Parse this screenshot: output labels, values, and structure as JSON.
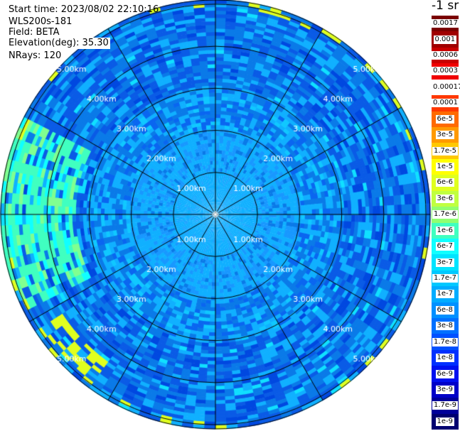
{
  "header": {
    "start_time": "Start time: 2023/08/02 22:10:16",
    "instrument": "WLS200s-181",
    "field": "Field: BETA",
    "elevation": "Elevation(deg): 35.30",
    "nrays": "NRays: 120"
  },
  "legend": {
    "units_title": "-1 sr",
    "bins": [
      {
        "label": "0.0017",
        "color": "#7a0000"
      },
      {
        "label": "0.001",
        "color": "#a00000"
      },
      {
        "label": "0.0006",
        "color": "#c80000"
      },
      {
        "label": "0.0003",
        "color": "#f00000"
      },
      {
        "label": "0.00017",
        "color": "#ffffff"
      },
      {
        "label": "0.0001",
        "color": "#ff3800"
      },
      {
        "label": "6e-5",
        "color": "#ff6a00"
      },
      {
        "label": "3e-5",
        "color": "#ff9a00"
      },
      {
        "label": "1.7e-5",
        "color": "#ffc800"
      },
      {
        "label": "1e-5",
        "color": "#ffff00"
      },
      {
        "label": "6e-6",
        "color": "#e0ff1f"
      },
      {
        "label": "3e-6",
        "color": "#c0ff40"
      },
      {
        "label": "1.7e-6",
        "color": "#90ff70"
      },
      {
        "label": "1e-6",
        "color": "#40ffc0"
      },
      {
        "label": "6e-7",
        "color": "#10ffff"
      },
      {
        "label": "3e-7",
        "color": "#00e4ff"
      },
      {
        "label": "1.7e-7",
        "color": "#00c8ff"
      },
      {
        "label": "1e-7",
        "color": "#00acff"
      },
      {
        "label": "6e-8",
        "color": "#0090ff"
      },
      {
        "label": "3e-8",
        "color": "#0070ff"
      },
      {
        "label": "1.7e-8",
        "color": "#0050ff"
      },
      {
        "label": "1e-8",
        "color": "#0030ff"
      },
      {
        "label": "6e-9",
        "color": "#0010f0"
      },
      {
        "label": "3e-9",
        "color": "#0000c8"
      },
      {
        "label": "1.7e-9",
        "color": "#00009a"
      },
      {
        "label": "1e-9",
        "color": "#000070"
      }
    ]
  },
  "chart_data": {
    "type": "heatmap",
    "projection": "polar-ppi",
    "field": "BETA",
    "nrays": 120,
    "elevation_deg": 35.3,
    "range_rings_km": [
      1,
      2,
      3,
      4,
      5
    ],
    "ring_labels": [
      "1.00km",
      "2.00km",
      "3.00km",
      "4.00km",
      "5.00km"
    ],
    "max_range_km": 5.1,
    "spoke_azimuths_deg": [
      0,
      30,
      60,
      90,
      120,
      150,
      180,
      210,
      240,
      270,
      300,
      330
    ],
    "colors": {
      "near_field": "#10b0ff",
      "mid_field": "#0a7ae8",
      "far_field": "#0a5be6",
      "west_plume": "#40ffc0",
      "edge_highlight": "#e0ff1f"
    }
  }
}
